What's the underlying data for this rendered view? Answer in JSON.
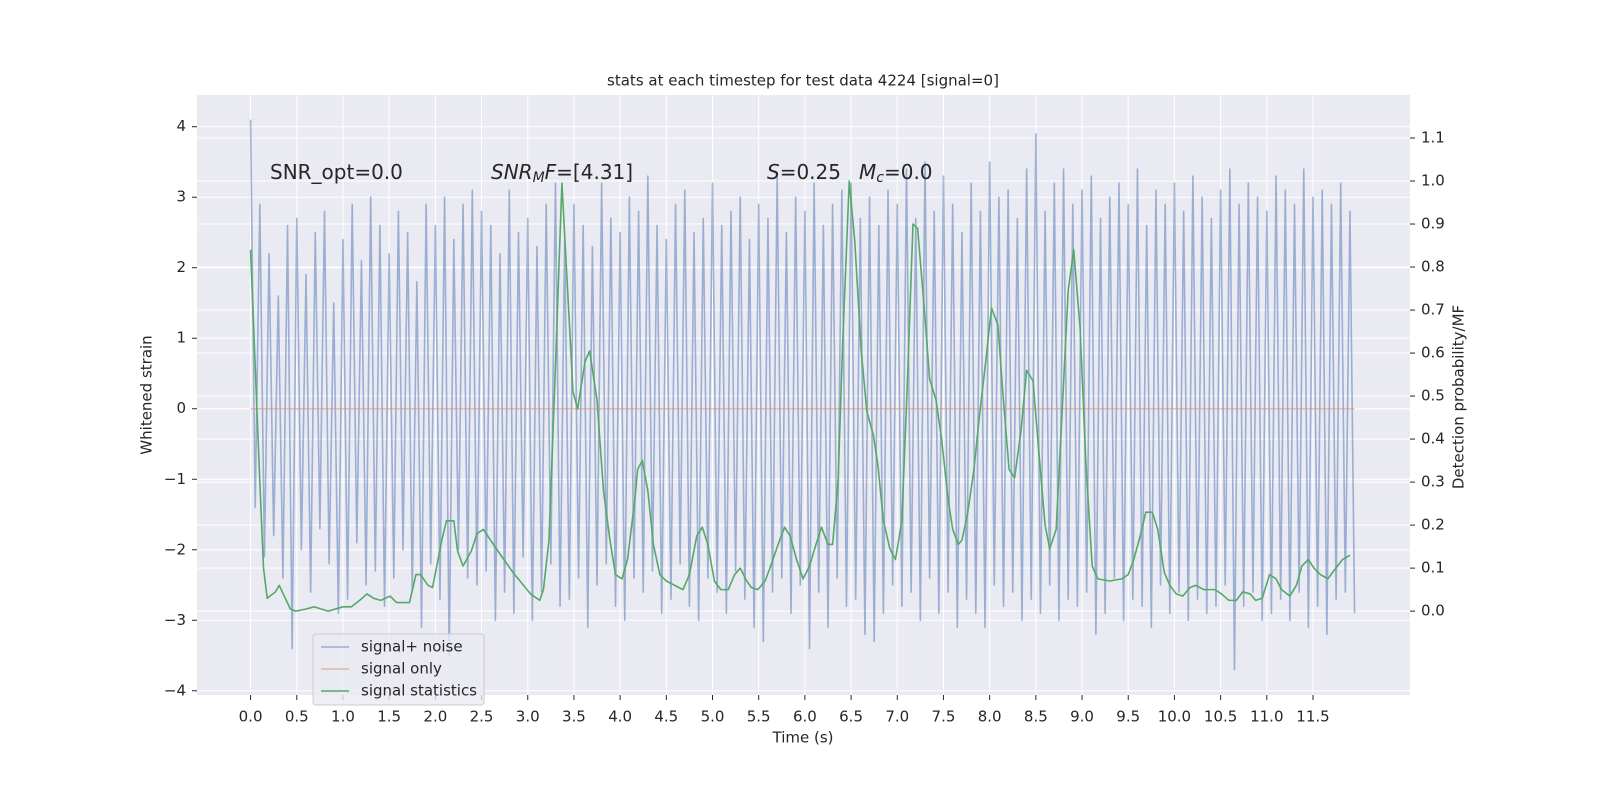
{
  "chart_data": {
    "type": "line",
    "title": "stats at each timestep for test data 4224 [signal=0]",
    "x_label": "Time (s)",
    "y_label": "Whitened strain",
    "y2_label": "Detection probability/MF",
    "annotations": [
      {
        "parts": [
          [
            "SNR_opt=0.0",
            "normal"
          ]
        ]
      },
      {
        "parts": [
          [
            "SNR",
            "italic"
          ],
          [
            "M",
            "sub"
          ],
          [
            "F",
            "italic"
          ],
          [
            "=[4.31]",
            "normal"
          ]
        ]
      },
      {
        "parts": [
          [
            "S",
            "italic"
          ],
          [
            "=0.25",
            "normal"
          ]
        ]
      },
      {
        "parts": [
          [
            "M",
            "italic"
          ],
          [
            "c",
            "sub"
          ],
          [
            "=0.0",
            "normal"
          ]
        ]
      }
    ],
    "xlim": [
      -0.58,
      12.55
    ],
    "ylim": [
      -4.06,
      4.45
    ],
    "y2lim": [
      -0.195,
      1.2
    ],
    "xticks": [
      {
        "value": 0,
        "label": "0.0"
      },
      0.5,
      {
        "value": 1,
        "label": "1.0"
      },
      1.5,
      {
        "value": 2,
        "label": "2.0"
      },
      2.5,
      {
        "value": 3,
        "label": "3.0"
      },
      3.5,
      {
        "value": 4,
        "label": "4.0"
      },
      4.5,
      {
        "value": 5,
        "label": "5.0"
      },
      5.5,
      {
        "value": 6,
        "label": "6.0"
      },
      6.5,
      {
        "value": 7,
        "label": "7.0"
      },
      7.5,
      {
        "value": 8,
        "label": "8.0"
      },
      8.5,
      {
        "value": 9,
        "label": "9.0"
      },
      9.5,
      {
        "value": 10,
        "label": "10.0"
      },
      10.5,
      {
        "value": 11,
        "label": "11.0"
      },
      11.5
    ],
    "yticks": [
      {
        "value": -4,
        "label": "−4"
      },
      {
        "value": -3,
        "label": "−3"
      },
      {
        "value": -2,
        "label": "−2"
      },
      {
        "value": -1,
        "label": "−1"
      },
      0,
      1,
      2,
      3,
      4
    ],
    "y2ticks": [
      {
        "value": 0,
        "label": "0.0"
      },
      0.1,
      0.2,
      0.3,
      0.4,
      0.5,
      0.6,
      0.7,
      0.8,
      0.9,
      {
        "value": 1,
        "label": "1.0"
      },
      1.1
    ],
    "grid": true,
    "legend_loc": "lower left",
    "series": [
      {
        "name": "signal+ noise",
        "color": "#4c72b0",
        "opacity": 0.5,
        "x": [
          0,
          0.05,
          0.1,
          0.15,
          0.2,
          0.25,
          0.3,
          0.35,
          0.4,
          0.45,
          0.5,
          0.55,
          0.6,
          0.65,
          0.7,
          0.75,
          0.8,
          0.85,
          0.9,
          0.95,
          1,
          1.05,
          1.1,
          1.15,
          1.2,
          1.25,
          1.3,
          1.35,
          1.4,
          1.45,
          1.5,
          1.55,
          1.6,
          1.65,
          1.7,
          1.75,
          1.8,
          1.85,
          1.9,
          1.95,
          2,
          2.05,
          2.1,
          2.15,
          2.2,
          2.25,
          2.3,
          2.35,
          2.4,
          2.45,
          2.5,
          2.55,
          2.6,
          2.65,
          2.7,
          2.75,
          2.8,
          2.85,
          2.9,
          2.95,
          3,
          3.05,
          3.1,
          3.15,
          3.2,
          3.25,
          3.3,
          3.35,
          3.4,
          3.45,
          3.5,
          3.55,
          3.6,
          3.65,
          3.7,
          3.75,
          3.8,
          3.85,
          3.9,
          3.95,
          4,
          4.05,
          4.1,
          4.15,
          4.2,
          4.25,
          4.3,
          4.35,
          4.4,
          4.45,
          4.5,
          4.55,
          4.6,
          4.65,
          4.7,
          4.75,
          4.8,
          4.85,
          4.9,
          4.95,
          5,
          5.05,
          5.1,
          5.15,
          5.2,
          5.25,
          5.3,
          5.35,
          5.4,
          5.45,
          5.5,
          5.55,
          5.6,
          5.65,
          5.7,
          5.75,
          5.8,
          5.85,
          5.9,
          5.95,
          6,
          6.05,
          6.1,
          6.15,
          6.2,
          6.25,
          6.3,
          6.35,
          6.4,
          6.45,
          6.5,
          6.55,
          6.6,
          6.65,
          6.7,
          6.75,
          6.8,
          6.85,
          6.9,
          6.95,
          7,
          7.05,
          7.1,
          7.15,
          7.2,
          7.25,
          7.3,
          7.35,
          7.4,
          7.45,
          7.5,
          7.55,
          7.6,
          7.65,
          7.7,
          7.75,
          7.8,
          7.85,
          7.9,
          7.95,
          8,
          8.05,
          8.1,
          8.15,
          8.2,
          8.25,
          8.3,
          8.35,
          8.4,
          8.45,
          8.5,
          8.55,
          8.6,
          8.65,
          8.7,
          8.75,
          8.8,
          8.85,
          8.9,
          8.95,
          9,
          9.05,
          9.1,
          9.15,
          9.2,
          9.25,
          9.3,
          9.35,
          9.4,
          9.45,
          9.5,
          9.55,
          9.6,
          9.65,
          9.7,
          9.75,
          9.8,
          9.85,
          9.9,
          9.95,
          10,
          10.05,
          10.1,
          10.15,
          10.2,
          10.25,
          10.3,
          10.35,
          10.4,
          10.45,
          10.5,
          10.55,
          10.6,
          10.65,
          10.7,
          10.75,
          10.8,
          10.85,
          10.9,
          10.95,
          11,
          11.05,
          11.1,
          11.15,
          11.2,
          11.25,
          11.3,
          11.35,
          11.4,
          11.45,
          11.5,
          11.55,
          11.6,
          11.65,
          11.7,
          11.75,
          11.8,
          11.85,
          11.9,
          11.95
        ],
        "values": [
          4.1,
          -1.4,
          2.9,
          -2.1,
          2.2,
          -1.8,
          1.6,
          -2.4,
          2.6,
          -3.4,
          2.7,
          -2.0,
          1.9,
          -2.6,
          2.5,
          -1.7,
          2.8,
          -2.2,
          1.5,
          -2.9,
          2.4,
          -2.7,
          2.9,
          -1.9,
          2.1,
          -2.5,
          3.0,
          -2.3,
          2.6,
          -2.8,
          2.2,
          -2.4,
          2.8,
          -2.0,
          2.5,
          -2.6,
          1.8,
          -3.1,
          2.9,
          -2.2,
          2.6,
          -2.7,
          3.0,
          -3.5,
          2.4,
          -2.0,
          2.9,
          -2.4,
          3.1,
          -2.5,
          2.8,
          -2.3,
          2.6,
          -3.0,
          2.2,
          -2.6,
          3.1,
          -2.9,
          2.5,
          -2.1,
          2.7,
          -3.0,
          2.3,
          -2.6,
          2.9,
          -2.2,
          3.2,
          -2.8,
          2.4,
          -2.7,
          2.9,
          -2.4,
          2.6,
          -3.1,
          2.3,
          -2.5,
          3.2,
          -2.2,
          2.7,
          -2.8,
          2.5,
          -3.0,
          3.0,
          -2.4,
          2.8,
          -2.6,
          3.3,
          -2.3,
          2.6,
          -2.9,
          2.4,
          -2.7,
          2.9,
          -2.2,
          3.1,
          -2.8,
          2.5,
          -3.0,
          2.7,
          -2.4,
          3.2,
          -2.6,
          2.6,
          -2.9,
          2.8,
          -2.3,
          3.0,
          -2.7,
          2.4,
          -3.1,
          2.9,
          -3.3,
          2.7,
          -2.6,
          3.3,
          -2.4,
          2.5,
          -2.9,
          3.0,
          -2.5,
          2.8,
          -3.4,
          3.2,
          -2.6,
          2.6,
          -3.1,
          2.9,
          -2.4,
          3.1,
          -2.8,
          3.2,
          -2.7,
          2.7,
          -3.2,
          3.0,
          -3.3,
          2.6,
          -2.9,
          3.1,
          -2.5,
          2.9,
          -2.8,
          3.4,
          -2.6,
          2.7,
          -3.0,
          3.5,
          -2.4,
          2.8,
          -2.9,
          3.3,
          -2.6,
          2.9,
          -3.1,
          2.5,
          -2.7,
          3.2,
          -2.9,
          2.8,
          -3.1,
          3.5,
          -2.5,
          3.0,
          -2.8,
          3.1,
          -2.6,
          2.7,
          -3.0,
          3.4,
          -2.7,
          3.9,
          -2.9,
          2.8,
          -2.5,
          3.2,
          -3.0,
          3.4,
          -2.7,
          2.9,
          -2.8,
          3.1,
          -2.6,
          3.3,
          -3.2,
          2.7,
          -2.9,
          3.0,
          -2.4,
          3.2,
          -3.0,
          2.9,
          -2.7,
          3.4,
          -2.8,
          2.6,
          -3.1,
          3.1,
          -2.5,
          2.9,
          -2.9,
          3.2,
          -2.6,
          2.8,
          -3.0,
          3.3,
          -2.7,
          3.0,
          -2.9,
          2.7,
          -2.8,
          3.1,
          -2.5,
          3.4,
          -3.7,
          2.9,
          -2.8,
          3.2,
          -2.6,
          3.0,
          -3.0,
          2.8,
          -2.9,
          3.3,
          -2.7,
          3.1,
          -3.0,
          2.9,
          -2.6,
          3.4,
          -3.1,
          3.0,
          -2.8,
          3.1,
          -3.2,
          2.9,
          -2.7,
          3.2,
          -2.6,
          2.8,
          -2.9
        ]
      },
      {
        "name": "signal only",
        "color": "#dd8452",
        "opacity": 0.5,
        "x": [
          0,
          11.95
        ],
        "values": [
          0,
          0
        ]
      },
      {
        "name": "signal statistics",
        "color": "#55a868",
        "opacity": 1,
        "axis": "y2",
        "x": [
          0,
          0.1,
          0.14,
          0.18,
          0.27,
          0.31,
          0.43,
          0.49,
          0.6,
          0.69,
          0.84,
          1.0,
          1.09,
          1.18,
          1.26,
          1.33,
          1.41,
          1.51,
          1.58,
          1.72,
          1.79,
          1.84,
          1.92,
          1.97,
          2.07,
          2.12,
          2.2,
          2.24,
          2.3,
          2.39,
          2.45,
          2.52,
          2.66,
          2.84,
          3.03,
          3.13,
          3.17,
          3.23,
          3.29,
          3.37,
          3.49,
          3.54,
          3.62,
          3.67,
          3.75,
          3.82,
          3.89,
          3.95,
          4.02,
          4.08,
          4.16,
          4.19,
          4.24,
          4.3,
          4.36,
          4.43,
          4.5,
          4.68,
          4.75,
          4.83,
          4.89,
          4.95,
          5.02,
          5.09,
          5.17,
          5.24,
          5.3,
          5.37,
          5.42,
          5.49,
          5.57,
          5.63,
          5.71,
          5.78,
          5.84,
          5.91,
          5.98,
          6.05,
          6.12,
          6.18,
          6.25,
          6.3,
          6.36,
          6.41,
          6.48,
          6.54,
          6.61,
          6.67,
          6.74,
          6.79,
          6.85,
          6.92,
          6.98,
          7.05,
          7.11,
          7.17,
          7.22,
          7.29,
          7.35,
          7.42,
          7.48,
          7.55,
          7.6,
          7.66,
          7.7,
          7.76,
          7.83,
          7.89,
          7.96,
          8.02,
          8.09,
          8.14,
          8.21,
          8.27,
          8.34,
          8.4,
          8.47,
          8.53,
          8.6,
          8.65,
          8.72,
          8.78,
          8.85,
          8.91,
          8.98,
          9.04,
          9.11,
          9.17,
          9.3,
          9.43,
          9.5,
          9.56,
          9.63,
          9.69,
          9.76,
          9.82,
          9.89,
          9.95,
          10.02,
          10.09,
          10.17,
          10.23,
          10.32,
          10.44,
          10.51,
          10.59,
          10.67,
          10.74,
          10.82,
          10.88,
          10.95,
          11.03,
          11.1,
          11.16,
          11.25,
          11.32,
          11.38,
          11.45,
          11.51,
          11.58,
          11.66,
          11.73,
          11.82,
          11.9
        ],
        "values": [
          0.84,
          0.3,
          0.1,
          0.03,
          0.045,
          0.06,
          0.005,
          0.0,
          0.005,
          0.01,
          0.0,
          0.01,
          0.01,
          0.025,
          0.04,
          0.03,
          0.025,
          0.035,
          0.02,
          0.02,
          0.085,
          0.085,
          0.06,
          0.055,
          0.165,
          0.21,
          0.21,
          0.14,
          0.105,
          0.14,
          0.18,
          0.19,
          0.145,
          0.09,
          0.04,
          0.025,
          0.05,
          0.165,
          0.51,
          0.995,
          0.51,
          0.47,
          0.58,
          0.605,
          0.49,
          0.28,
          0.165,
          0.085,
          0.075,
          0.12,
          0.26,
          0.33,
          0.35,
          0.28,
          0.155,
          0.085,
          0.07,
          0.05,
          0.085,
          0.175,
          0.195,
          0.155,
          0.07,
          0.05,
          0.05,
          0.085,
          0.1,
          0.07,
          0.055,
          0.05,
          0.07,
          0.105,
          0.155,
          0.195,
          0.175,
          0.12,
          0.075,
          0.105,
          0.155,
          0.195,
          0.155,
          0.155,
          0.305,
          0.63,
          1.0,
          0.86,
          0.605,
          0.465,
          0.41,
          0.34,
          0.21,
          0.145,
          0.12,
          0.21,
          0.535,
          0.9,
          0.89,
          0.71,
          0.54,
          0.49,
          0.4,
          0.26,
          0.19,
          0.155,
          0.165,
          0.225,
          0.33,
          0.455,
          0.585,
          0.705,
          0.665,
          0.515,
          0.33,
          0.31,
          0.42,
          0.56,
          0.535,
          0.375,
          0.2,
          0.145,
          0.19,
          0.445,
          0.745,
          0.84,
          0.655,
          0.35,
          0.105,
          0.075,
          0.07,
          0.075,
          0.085,
          0.12,
          0.175,
          0.23,
          0.23,
          0.19,
          0.09,
          0.06,
          0.04,
          0.035,
          0.055,
          0.06,
          0.05,
          0.05,
          0.04,
          0.025,
          0.025,
          0.045,
          0.04,
          0.025,
          0.03,
          0.085,
          0.075,
          0.05,
          0.035,
          0.06,
          0.105,
          0.12,
          0.1,
          0.085,
          0.075,
          0.095,
          0.12,
          0.13
        ]
      }
    ]
  }
}
